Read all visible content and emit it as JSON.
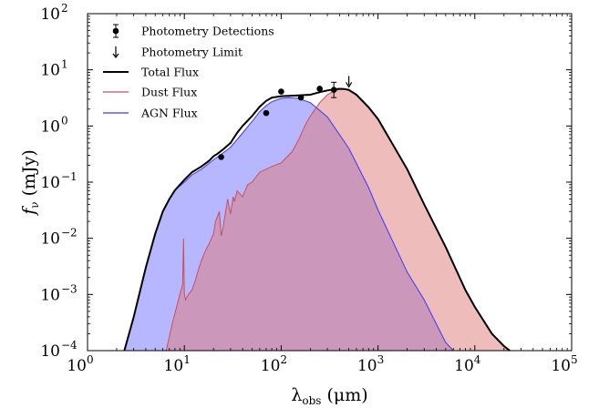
{
  "chart_data": {
    "type": "area",
    "xscale": "log",
    "yscale": "log",
    "xlim": [
      1,
      100000
    ],
    "ylim": [
      0.0001,
      100
    ],
    "xlabel": {
      "base": "λ",
      "sub": "obs",
      "unit": " (μm)"
    },
    "ylabel": {
      "base": "f",
      "sub": "ν",
      "unit": " (mJy)"
    },
    "x_ticks": [
      {
        "value": 1,
        "base": "10",
        "exp": "0"
      },
      {
        "value": 10,
        "base": "10",
        "exp": "1"
      },
      {
        "value": 100,
        "base": "10",
        "exp": "2"
      },
      {
        "value": 1000,
        "base": "10",
        "exp": "3"
      },
      {
        "value": 10000,
        "base": "10",
        "exp": "4"
      },
      {
        "value": 100000,
        "base": "10",
        "exp": "5"
      }
    ],
    "y_ticks": [
      {
        "value": 0.0001,
        "base": "10",
        "exp": "−4"
      },
      {
        "value": 0.001,
        "base": "10",
        "exp": "−3"
      },
      {
        "value": 0.01,
        "base": "10",
        "exp": "−2"
      },
      {
        "value": 0.1,
        "base": "10",
        "exp": "−1"
      },
      {
        "value": 1,
        "base": "10",
        "exp": "0"
      },
      {
        "value": 10,
        "base": "10",
        "exp": "1"
      },
      {
        "value": 100,
        "base": "10",
        "exp": "2"
      }
    ],
    "legend": {
      "placement": "top-left",
      "entries": [
        {
          "label": "Photometry Detections",
          "marker": "point-errorbar"
        },
        {
          "label": "Photometry Limit",
          "marker": "down-arrow"
        },
        {
          "label": "Total Flux",
          "marker": "line",
          "color": "#000000"
        },
        {
          "label": "Dust Flux",
          "marker": "line",
          "color": "#c8505a"
        },
        {
          "label": "AGN Flux",
          "marker": "line",
          "color": "#3a3aee"
        }
      ]
    },
    "colors": {
      "total": "#000000",
      "dust_line": "#c8505a",
      "dust_fill": "#e07a7a",
      "agn_line": "#3a3aee",
      "agn_fill": "#7b7bff"
    },
    "series": [
      {
        "name": "AGN Flux",
        "x": [
          2.4,
          3,
          4,
          5,
          6,
          7,
          8,
          10,
          12,
          15,
          20,
          25,
          30,
          40,
          50,
          60,
          70,
          80,
          100,
          120,
          150,
          200,
          300,
          500,
          800,
          1000,
          2000,
          3000,
          4000,
          5000,
          6000
        ],
        "y": [
          0.0001,
          0.0004,
          0.003,
          0.012,
          0.03,
          0.05,
          0.072,
          0.1,
          0.135,
          0.17,
          0.25,
          0.33,
          0.42,
          0.75,
          1.2,
          1.8,
          2.3,
          2.7,
          3.1,
          3.2,
          3.1,
          2.6,
          1.45,
          0.4,
          0.08,
          0.032,
          0.0025,
          0.0008,
          0.0003,
          0.00014,
          0.0001
        ]
      },
      {
        "name": "Dust Flux",
        "x": [
          6.5,
          7.5,
          9,
          9.6,
          9.8,
          10,
          10.3,
          11,
          12,
          13,
          14,
          15,
          16.5,
          18,
          20,
          21,
          23,
          24,
          25,
          28,
          30,
          32,
          33,
          35,
          40,
          45,
          50,
          60,
          80,
          100,
          130,
          150,
          180,
          200,
          250,
          300,
          350,
          400,
          450,
          500,
          600,
          800,
          1000,
          2000,
          3000,
          5000,
          8000,
          10000,
          15000,
          20000,
          23000
        ],
        "y": [
          0.0001,
          0.0003,
          0.001,
          0.0015,
          0.01,
          0.001,
          0.0008,
          0.001,
          0.0012,
          0.0018,
          0.0028,
          0.004,
          0.006,
          0.008,
          0.012,
          0.02,
          0.03,
          0.011,
          0.015,
          0.05,
          0.027,
          0.055,
          0.045,
          0.07,
          0.055,
          0.09,
          0.1,
          0.15,
          0.19,
          0.22,
          0.35,
          0.55,
          1.1,
          1.5,
          2.6,
          3.6,
          4.2,
          4.5,
          4.5,
          4.3,
          3.5,
          2.1,
          1.3,
          0.17,
          0.04,
          0.007,
          0.0012,
          0.0006,
          0.0002,
          0.00012,
          0.0001
        ]
      },
      {
        "name": "Total Flux",
        "x": [
          2.4,
          3,
          4,
          5,
          6,
          7,
          8,
          10,
          12,
          15,
          18,
          20,
          22,
          25,
          30,
          35,
          40,
          50,
          60,
          70,
          80,
          100,
          120,
          150,
          200,
          250,
          300,
          350,
          400,
          450,
          500,
          600,
          800,
          1000,
          2000,
          3000,
          5000,
          8000,
          10000,
          15000,
          20000,
          23000
        ],
        "y": [
          0.0001,
          0.0004,
          0.003,
          0.012,
          0.03,
          0.05,
          0.072,
          0.11,
          0.15,
          0.19,
          0.24,
          0.29,
          0.32,
          0.38,
          0.5,
          0.75,
          1.0,
          1.5,
          2.2,
          2.8,
          3.2,
          3.4,
          3.45,
          3.5,
          3.6,
          4.0,
          4.3,
          4.5,
          4.6,
          4.55,
          4.4,
          3.6,
          2.15,
          1.33,
          0.17,
          0.04,
          0.007,
          0.0012,
          0.0006,
          0.0002,
          0.00012,
          0.0001
        ]
      }
    ],
    "detections": [
      {
        "x": 24,
        "y": 0.28
      },
      {
        "x": 70,
        "y": 1.7
      },
      {
        "x": 100,
        "y": 4.1
      },
      {
        "x": 160,
        "y": 3.2
      },
      {
        "x": 250,
        "y": 4.6
      },
      {
        "x": 350,
        "y": 4.4,
        "yerr_low": 3.2,
        "yerr_high": 6.0
      }
    ],
    "limits": [
      {
        "x": 500,
        "y": 6.2
      }
    ]
  }
}
